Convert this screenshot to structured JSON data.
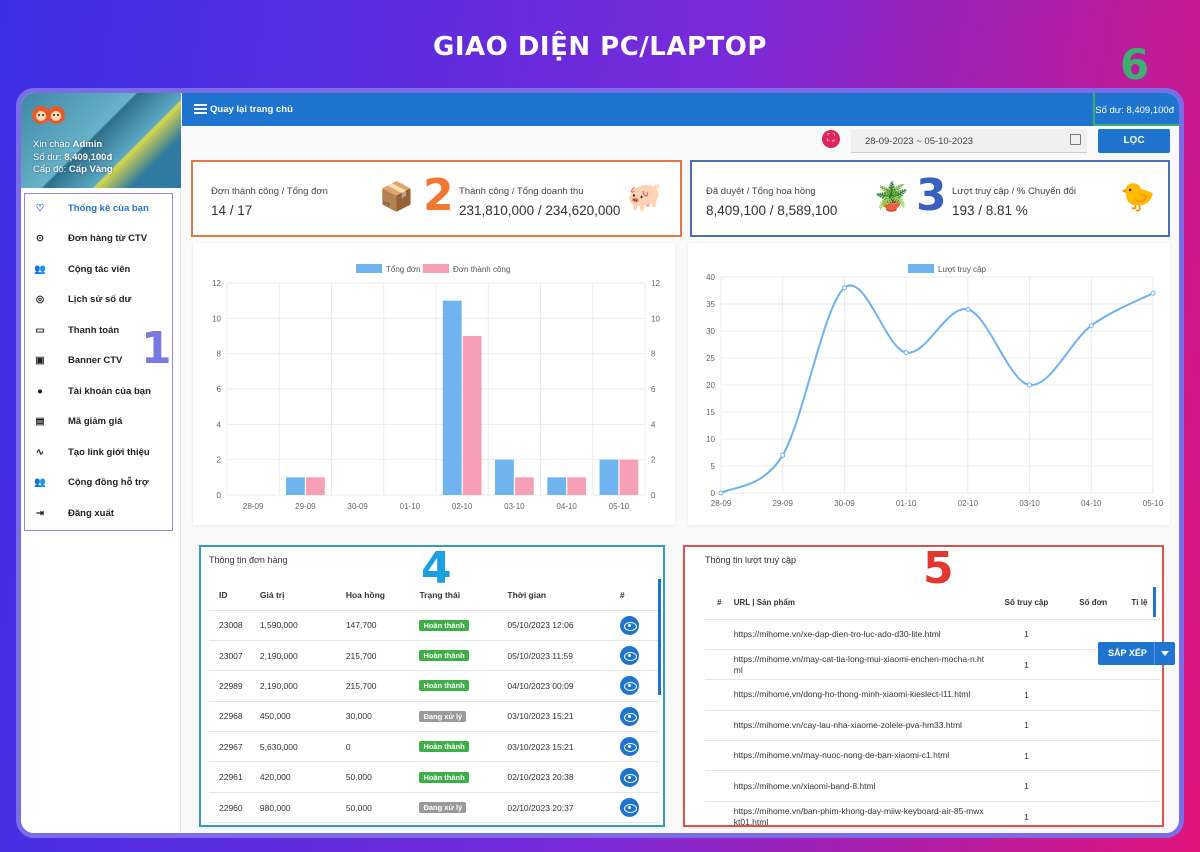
{
  "heading": "GIAO DIỆN PC/LAPTOP",
  "profile": {
    "greeting_prefix": "Xin chào",
    "name": "Admin",
    "balance_label": "Số dư:",
    "balance": "8,409,100đ",
    "level_label": "Cấp độ:",
    "level": "Cấp Vàng"
  },
  "sidebar": {
    "items": [
      {
        "label": "Thống kê của bạn",
        "icon": "heart-icon"
      },
      {
        "label": "Đơn hàng từ CTV",
        "icon": "scan-icon"
      },
      {
        "label": "Cộng tác viên",
        "icon": "group-icon"
      },
      {
        "label": "Lịch sử số dư",
        "icon": "fingerprint-icon"
      },
      {
        "label": "Thanh toán",
        "icon": "card-icon"
      },
      {
        "label": "Banner CTV",
        "icon": "image-icon"
      },
      {
        "label": "Tài khoản của bạn",
        "icon": "person-icon"
      },
      {
        "label": "Mã giảm giá",
        "icon": "coupon-icon"
      },
      {
        "label": "Tạo link giới thiệu",
        "icon": "link-icon"
      },
      {
        "label": "Cộng đồng hỗ trợ",
        "icon": "community-icon"
      },
      {
        "label": "Đăng xuất",
        "icon": "logout-icon"
      }
    ]
  },
  "topbar": {
    "home": "Quay lại trang chủ",
    "balance": "Số dư: 8,409,100đ"
  },
  "filter": {
    "date_range": "28-09-2023 ~ 05-10-2023",
    "button": "LỌC"
  },
  "markers": [
    "1",
    "2",
    "3",
    "4",
    "5",
    "6"
  ],
  "stats": [
    {
      "title": "Đơn thành công / Tổng đơn",
      "value": "14 / 17"
    },
    {
      "title": "Thành công / Tổng doanh thu",
      "value": "231,810,000 / 234,620,000"
    },
    {
      "title": "Đã duyệt / Tổng hoa hồng",
      "value": "8,409,100 / 8,589,100"
    },
    {
      "title": "Lượt truy cập / % Chuyển đổi",
      "value": "193 / 8.81 %"
    }
  ],
  "chart_data": [
    {
      "type": "bar",
      "categories": [
        "28-09",
        "29-09",
        "30-09",
        "01-10",
        "02-10",
        "03-10",
        "04-10",
        "05-10"
      ],
      "series": [
        {
          "name": "Tổng đơn",
          "values": [
            0,
            1,
            0,
            0,
            11,
            2,
            1,
            2
          ],
          "color": "#6fb4ef"
        },
        {
          "name": "Đơn thành công",
          "values": [
            0,
            1,
            0,
            0,
            9,
            1,
            1,
            2
          ],
          "color": "#f79fb5"
        }
      ],
      "ylim": [
        0,
        12
      ],
      "yticks": [
        "0",
        "2",
        "4",
        "6",
        "8",
        "10",
        "12"
      ]
    },
    {
      "type": "line",
      "x": [
        "28-09",
        "29-09",
        "30-09",
        "01-10",
        "02-10",
        "03-10",
        "04-10",
        "05-10"
      ],
      "series": [
        {
          "name": "Lượt truy cập",
          "values": [
            0,
            7,
            38,
            26,
            34,
            20,
            31,
            37
          ],
          "color": "#6fb4ef"
        }
      ],
      "ylim": [
        0,
        40
      ],
      "yticks": [
        "0",
        "5",
        "10",
        "15",
        "20",
        "25",
        "30",
        "35",
        "40"
      ]
    }
  ],
  "orders": {
    "title": "Thông tin đơn hàng",
    "headers": [
      "ID",
      "Giá trị",
      "Hoa hồng",
      "Trạng thái",
      "Thời gian",
      "#"
    ],
    "rows": [
      {
        "id": "23008",
        "value": "1,590,000",
        "commission": "147,700",
        "status": "Hoàn thành",
        "time": "05/10/2023 12:06",
        "done": true
      },
      {
        "id": "23007",
        "value": "2,190,000",
        "commission": "215,700",
        "status": "Hoàn thành",
        "time": "05/10/2023 11:59",
        "done": true
      },
      {
        "id": "22989",
        "value": "2,190,000",
        "commission": "215,700",
        "status": "Hoàn thành",
        "time": "04/10/2023 00:09",
        "done": true
      },
      {
        "id": "22968",
        "value": "450,000",
        "commission": "30,000",
        "status": "Đang xử lý",
        "time": "03/10/2023 15:21",
        "done": false
      },
      {
        "id": "22967",
        "value": "5,630,000",
        "commission": "0",
        "status": "Hoàn thành",
        "time": "03/10/2023 15:21",
        "done": true
      },
      {
        "id": "22961",
        "value": "420,000",
        "commission": "50,000",
        "status": "Hoàn thành",
        "time": "02/10/2023 20:38",
        "done": true
      },
      {
        "id": "22960",
        "value": "980,000",
        "commission": "50,000",
        "status": "Đang xử lý",
        "time": "02/10/2023 20:37",
        "done": false
      }
    ],
    "colors": {
      "done": "#3fae49",
      "pending": "#9a9a9a"
    }
  },
  "visits": {
    "title": "Thông tin lượt truy cập",
    "sort_button": "SẮP XẾP",
    "headers": [
      "#",
      "URL | Sản phẩm",
      "Số truy cập",
      "Số đơn",
      "Tỉ lệ"
    ],
    "rows": [
      {
        "url": "https://mihome.vn/xe-dap-dien-tro-luc-ado-d30-lite.html",
        "count": "1"
      },
      {
        "url": "https://mihome.vn/may-cat-tia-long-mui-xiaomi-enchen-mocha-n.html",
        "count": "1"
      },
      {
        "url": "https://mihome.vn/dong-ho-thong-minh-xiaomi-kieslect-l11.html",
        "count": "1"
      },
      {
        "url": "https://mihome.vn/cay-lau-nha-xiaome-zolele-pva-hm33.html",
        "count": "1"
      },
      {
        "url": "https://mihome.vn/may-nuoc-nong-de-ban-xiaomi-c1.html",
        "count": "1"
      },
      {
        "url": "https://mihome.vn/xiaomi-band-8.html",
        "count": "1"
      },
      {
        "url": "https://mihome.vn/ban-phim-khong-day-miiw-keyboard-air-85-mwxkt01.html",
        "count": "1"
      }
    ]
  }
}
